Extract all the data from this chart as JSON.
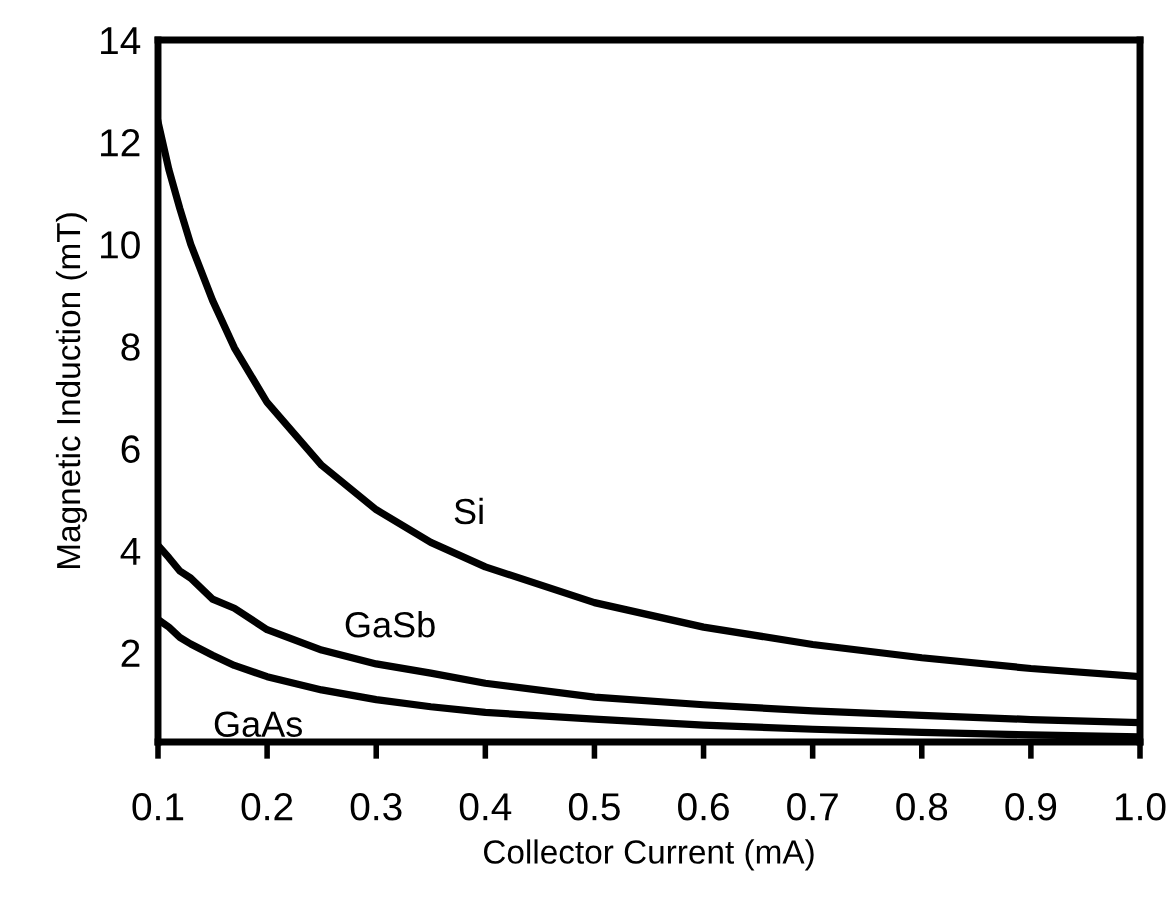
{
  "chart_data": {
    "type": "line",
    "xlabel": "Collector Current (mA)",
    "ylabel": "Magnetic Induction (mT)",
    "x": [
      0.1,
      0.11,
      0.12,
      0.13,
      0.15,
      0.17,
      0.2,
      0.25,
      0.3,
      0.35,
      0.4,
      0.5,
      0.6,
      0.7,
      0.8,
      0.9,
      1.0
    ],
    "series": [
      {
        "name": "Si",
        "color": "#000000",
        "values": [
          12.4,
          11.46,
          10.7,
          10.0,
          8.9,
          7.97,
          6.9,
          5.67,
          4.8,
          4.16,
          3.68,
          2.98,
          2.5,
          2.16,
          1.9,
          1.69,
          1.53
        ]
      },
      {
        "name": "GaSb",
        "color": "#000000",
        "values": [
          4.1,
          3.86,
          3.6,
          3.46,
          3.05,
          2.87,
          2.45,
          2.05,
          1.78,
          1.6,
          1.4,
          1.13,
          0.98,
          0.86,
          0.77,
          0.69,
          0.63
        ]
      },
      {
        "name": "GaAs",
        "color": "#000000",
        "values": [
          2.65,
          2.5,
          2.3,
          2.17,
          1.95,
          1.75,
          1.53,
          1.27,
          1.08,
          0.94,
          0.83,
          0.7,
          0.58,
          0.5,
          0.44,
          0.39,
          0.35
        ]
      }
    ],
    "xlim": [
      0.1,
      1.0
    ],
    "ylim": [
      0.25,
      14
    ],
    "xticks": [
      {
        "value": 0.1,
        "label": "0.1"
      },
      {
        "value": 0.2,
        "label": "0.2"
      },
      {
        "value": 0.3,
        "label": "0.3"
      },
      {
        "value": 0.4,
        "label": "0.4"
      },
      {
        "value": 0.5,
        "label": "0.5"
      },
      {
        "value": 0.6,
        "label": "0.6"
      },
      {
        "value": 0.7,
        "label": "0.7"
      },
      {
        "value": 0.8,
        "label": "0.8"
      },
      {
        "value": 0.9,
        "label": "0.9"
      },
      {
        "value": 1.0,
        "label": "1.0"
      }
    ],
    "yticks": [
      2,
      4,
      6,
      8,
      10,
      12,
      14
    ],
    "grid": false,
    "legend": false,
    "marker": "none",
    "line_style": "solid"
  }
}
